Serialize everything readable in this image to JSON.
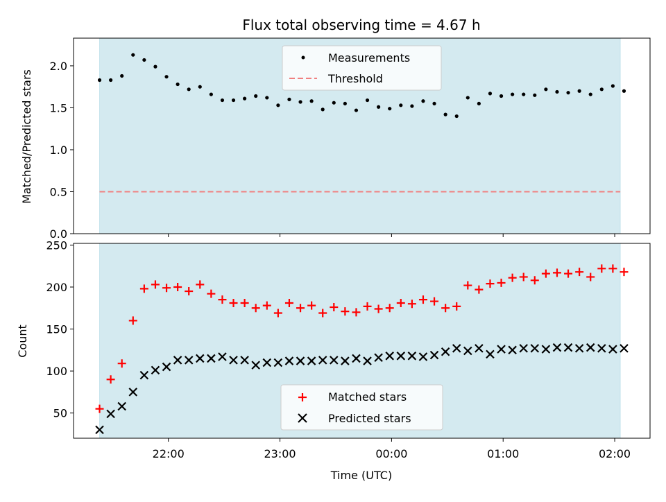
{
  "chart_data": [
    {
      "type": "scatter",
      "title": "Flux total observing time = 4.67 h",
      "xlabel": "",
      "ylabel": "Matched/Predicted stars",
      "ylim": [
        0,
        2.33
      ],
      "yticks": [
        "0.0",
        "0.5",
        "1.0",
        "1.5",
        "2.0"
      ],
      "shaded_x_range": [
        "21:23",
        "02:03"
      ],
      "shade_color": "#add8e6",
      "legend": {
        "placement": "top-center",
        "entries": [
          "Measurements",
          "Threshold"
        ]
      },
      "threshold": {
        "name": "Threshold",
        "y": 0.5,
        "color": "#f08080",
        "style": "dashed"
      },
      "series": [
        {
          "name": "Measurements",
          "marker": "dot",
          "color": "#000000",
          "x": [
            "21:23",
            "21:29",
            "21:35",
            "21:41",
            "21:47",
            "21:53",
            "21:59",
            "22:05",
            "22:11",
            "22:17",
            "22:23",
            "22:29",
            "22:35",
            "22:41",
            "22:47",
            "22:53",
            "22:59",
            "23:05",
            "23:11",
            "23:17",
            "23:23",
            "23:29",
            "23:35",
            "23:41",
            "23:47",
            "23:53",
            "23:59",
            "00:05",
            "00:11",
            "00:17",
            "00:23",
            "00:29",
            "00:35",
            "00:41",
            "00:47",
            "00:53",
            "00:59",
            "01:05",
            "01:11",
            "01:17",
            "01:23",
            "01:29",
            "01:35",
            "01:41",
            "01:47",
            "01:53",
            "01:59",
            "02:05"
          ],
          "y": [
            1.83,
            1.83,
            1.88,
            2.13,
            2.07,
            1.99,
            1.87,
            1.78,
            1.72,
            1.75,
            1.66,
            1.59,
            1.59,
            1.61,
            1.64,
            1.62,
            1.53,
            1.6,
            1.57,
            1.58,
            1.48,
            1.56,
            1.55,
            1.47,
            1.59,
            1.51,
            1.49,
            1.53,
            1.52,
            1.58,
            1.55,
            1.42,
            1.4,
            1.62,
            1.55,
            1.67,
            1.64,
            1.66,
            1.66,
            1.65,
            1.72,
            1.69,
            1.68,
            1.7,
            1.66,
            1.72,
            1.76,
            1.7
          ]
        }
      ]
    },
    {
      "type": "scatter",
      "title": "",
      "xlabel": "Time (UTC)",
      "ylabel": "Count",
      "ylim": [
        20,
        252
      ],
      "yticks": [
        "50",
        "100",
        "150",
        "200",
        "250"
      ],
      "xticks": [
        "22:00",
        "23:00",
        "00:00",
        "01:00",
        "02:00"
      ],
      "shaded_x_range": [
        "21:23",
        "02:03"
      ],
      "shade_color": "#add8e6",
      "legend": {
        "placement": "bottom-center",
        "entries": [
          "Matched stars",
          "Predicted stars"
        ]
      },
      "series": [
        {
          "name": "Matched stars",
          "marker": "plus",
          "color": "#ff0000",
          "x": [
            "21:23",
            "21:29",
            "21:35",
            "21:41",
            "21:47",
            "21:53",
            "21:59",
            "22:05",
            "22:11",
            "22:17",
            "22:23",
            "22:29",
            "22:35",
            "22:41",
            "22:47",
            "22:53",
            "22:59",
            "23:05",
            "23:11",
            "23:17",
            "23:23",
            "23:29",
            "23:35",
            "23:41",
            "23:47",
            "23:53",
            "23:59",
            "00:05",
            "00:11",
            "00:17",
            "00:23",
            "00:29",
            "00:35",
            "00:41",
            "00:47",
            "00:53",
            "00:59",
            "01:05",
            "01:11",
            "01:17",
            "01:23",
            "01:29",
            "01:35",
            "01:41",
            "01:47",
            "01:53",
            "01:59",
            "02:05"
          ],
          "y": [
            55,
            90,
            109,
            160,
            198,
            203,
            199,
            200,
            195,
            203,
            192,
            185,
            181,
            181,
            175,
            178,
            169,
            181,
            175,
            178,
            169,
            176,
            171,
            170,
            177,
            174,
            175,
            181,
            180,
            185,
            183,
            175,
            177,
            202,
            197,
            204,
            205,
            211,
            212,
            208,
            216,
            217,
            216,
            218,
            212,
            222,
            222,
            218
          ]
        },
        {
          "name": "Predicted stars",
          "marker": "x",
          "color": "#000000",
          "x": [
            "21:23",
            "21:29",
            "21:35",
            "21:41",
            "21:47",
            "21:53",
            "21:59",
            "22:05",
            "22:11",
            "22:17",
            "22:23",
            "22:29",
            "22:35",
            "22:41",
            "22:47",
            "22:53",
            "22:59",
            "23:05",
            "23:11",
            "23:17",
            "23:23",
            "23:29",
            "23:35",
            "23:41",
            "23:47",
            "23:53",
            "23:59",
            "00:05",
            "00:11",
            "00:17",
            "00:23",
            "00:29",
            "00:35",
            "00:41",
            "00:47",
            "00:53",
            "00:59",
            "01:05",
            "01:11",
            "01:17",
            "01:23",
            "01:29",
            "01:35",
            "01:41",
            "01:47",
            "01:53",
            "01:59",
            "02:05"
          ],
          "y": [
            30,
            49,
            58,
            75,
            95,
            101,
            105,
            113,
            113,
            115,
            115,
            117,
            113,
            113,
            107,
            110,
            110,
            112,
            112,
            112,
            113,
            113,
            112,
            115,
            112,
            116,
            118,
            118,
            118,
            117,
            119,
            123,
            127,
            124,
            127,
            120,
            126,
            125,
            127,
            127,
            126,
            128,
            128,
            127,
            128,
            127,
            126,
            127
          ]
        }
      ]
    }
  ]
}
